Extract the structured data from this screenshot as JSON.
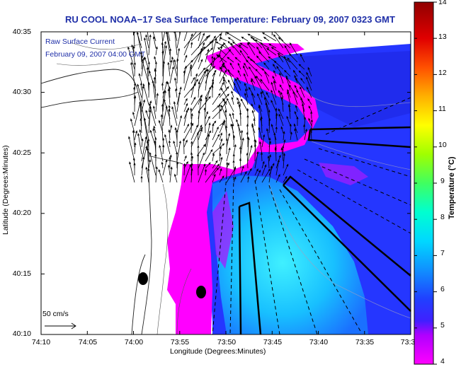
{
  "title": "RU COOL  NOAA−17  Sea Surface Temperature:  February 09, 2007 0323 GMT",
  "overlay": {
    "line1": "Raw Surface Current",
    "line2": "February 09, 2007 04:00 GMT"
  },
  "axes": {
    "xlabel": "Longitude (Degrees:Minutes)",
    "ylabel": "Latitude (Degrees:Minutes)",
    "xticks": [
      "74:10",
      "74:05",
      "74:00",
      "73:55",
      "73:50",
      "73:45",
      "73:40",
      "73:35",
      "73:3"
    ],
    "yticks": [
      "40:35",
      "40:30",
      "40:25",
      "40:20",
      "40:15",
      "40:10"
    ]
  },
  "colorbar": {
    "label": "Temperature (°C)",
    "ticks": [
      "14",
      "13",
      "12",
      "11",
      "10",
      "9",
      "8",
      "7",
      "6",
      "5",
      "4"
    ],
    "min": 4,
    "max": 14
  },
  "scale_bar": {
    "label": "50 cm/s"
  },
  "colors": {
    "title": "#1f2fa8",
    "warm": "#ff00ff",
    "cool": "#00e0ff",
    "deep": "#2030ff"
  }
}
